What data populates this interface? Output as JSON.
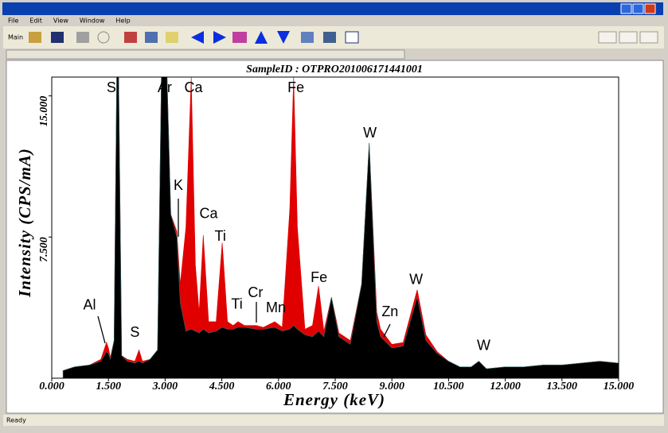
{
  "ui": {
    "menu": [
      "File",
      "Edit",
      "View",
      "Window",
      "Help"
    ],
    "toolbar_left": "Main",
    "status": "Ready"
  },
  "chart_data": {
    "type": "area",
    "title": "SampleID : OTPRO201006171441001",
    "x_label": "Energy (keV)",
    "y_label": "Intensity (CPS/mA)",
    "xlim": [
      0,
      15
    ],
    "ylim": [
      0,
      16
    ],
    "xticks": [
      {
        "value": 0,
        "label": "0.000"
      },
      {
        "value": 1.5,
        "label": "1.500"
      },
      {
        "value": 3,
        "label": "3.000"
      },
      {
        "value": 4.5,
        "label": "4.500"
      },
      {
        "value": 6,
        "label": "6.000"
      },
      {
        "value": 7.5,
        "label": "7.500"
      },
      {
        "value": 9,
        "label": "9.000"
      },
      {
        "value": 10.5,
        "label": "10.500"
      },
      {
        "value": 12,
        "label": "12.000"
      },
      {
        "value": 13.5,
        "label": "13.500"
      },
      {
        "value": 15,
        "label": "15.000"
      }
    ],
    "yticks": [
      {
        "value": 7.5,
        "label": "7.500"
      },
      {
        "value": 15,
        "label": "15.000"
      }
    ],
    "x": [
      0.3,
      0.6,
      1.0,
      1.3,
      1.45,
      1.5,
      1.55,
      1.65,
      1.72,
      1.74,
      1.77,
      1.85,
      2.0,
      2.2,
      2.31,
      2.4,
      2.6,
      2.8,
      2.9,
      2.96,
      3.05,
      3.15,
      3.31,
      3.4,
      3.55,
      3.69,
      3.8,
      3.9,
      4.01,
      4.15,
      4.35,
      4.51,
      4.65,
      4.8,
      4.93,
      5.1,
      5.41,
      5.6,
      5.9,
      6.1,
      6.3,
      6.4,
      6.5,
      6.7,
      6.9,
      7.06,
      7.2,
      7.4,
      7.6,
      7.9,
      8.2,
      8.4,
      8.6,
      8.7,
      9.0,
      9.3,
      9.67,
      9.9,
      10.2,
      10.5,
      10.8,
      11.1,
      11.3,
      11.5,
      12.0,
      12.5,
      13.0,
      13.5,
      14.0,
      14.5,
      15.0
    ],
    "series": [
      {
        "color": "#e00000",
        "values": [
          0.4,
          0.6,
          0.7,
          1.0,
          1.9,
          1.6,
          1.1,
          2.0,
          16,
          16,
          16,
          1.2,
          1.0,
          0.9,
          1.5,
          0.9,
          1.0,
          1.5,
          16,
          16,
          16,
          8.7,
          7.8,
          5.0,
          8.0,
          16,
          6.0,
          3.5,
          7.6,
          3.0,
          3.0,
          7.2,
          3.0,
          2.8,
          3.0,
          2.8,
          2.8,
          2.7,
          3.0,
          2.7,
          9.0,
          16,
          8.0,
          2.6,
          2.8,
          4.9,
          2.5,
          4.3,
          2.4,
          2.0,
          5.0,
          12.5,
          3.5,
          2.6,
          1.8,
          1.9,
          4.7,
          2.3,
          1.4,
          0.9,
          0.6,
          0.6,
          0.9,
          0.5,
          0.6,
          0.6,
          0.7,
          0.7,
          0.8,
          0.9,
          0.8
        ]
      },
      {
        "color": "#000000",
        "values": [
          0.4,
          0.6,
          0.7,
          0.9,
          1.4,
          1.3,
          1.0,
          2.0,
          16,
          16,
          16,
          1.2,
          0.9,
          0.8,
          0.9,
          0.8,
          1.0,
          1.5,
          16,
          16,
          16,
          8.7,
          7.5,
          4.0,
          2.5,
          2.6,
          2.5,
          2.4,
          2.6,
          2.4,
          2.5,
          2.7,
          2.6,
          2.6,
          2.7,
          2.7,
          2.6,
          2.6,
          2.7,
          2.5,
          2.6,
          2.8,
          2.6,
          2.3,
          2.2,
          2.5,
          2.2,
          4.3,
          2.2,
          1.8,
          5.0,
          12.5,
          3.0,
          2.2,
          1.6,
          1.7,
          4.3,
          2.0,
          1.3,
          0.9,
          0.6,
          0.6,
          0.9,
          0.5,
          0.6,
          0.6,
          0.7,
          0.7,
          0.8,
          0.9,
          0.8
        ]
      }
    ],
    "annotations": [
      {
        "text": "Al",
        "x": 1.0,
        "y": 3.85
      },
      {
        "text": "Si",
        "x": 1.62,
        "y": 15.4
      },
      {
        "text": "S",
        "x": 2.2,
        "y": 2.4
      },
      {
        "text": "Ar",
        "x": 2.99,
        "y": 15.4
      },
      {
        "text": "Ca",
        "x": 3.75,
        "y": 15.4
      },
      {
        "text": "K",
        "x": 3.35,
        "y": 10.2
      },
      {
        "text": "Ca",
        "x": 4.15,
        "y": 8.7
      },
      {
        "text": "Ti",
        "x": 4.46,
        "y": 7.5
      },
      {
        "text": "Ti",
        "x": 4.9,
        "y": 3.9
      },
      {
        "text": "Cr",
        "x": 5.39,
        "y": 4.5
      },
      {
        "text": "Mn",
        "x": 5.93,
        "y": 3.7
      },
      {
        "text": "Fe",
        "x": 6.46,
        "y": 15.4
      },
      {
        "text": "Fe",
        "x": 7.07,
        "y": 5.3
      },
      {
        "text": "W",
        "x": 8.42,
        "y": 13
      },
      {
        "text": "W",
        "x": 9.64,
        "y": 5.2
      },
      {
        "text": "Zn",
        "x": 8.95,
        "y": 3.5
      },
      {
        "text": "W",
        "x": 11.43,
        "y": 1.7
      }
    ]
  }
}
